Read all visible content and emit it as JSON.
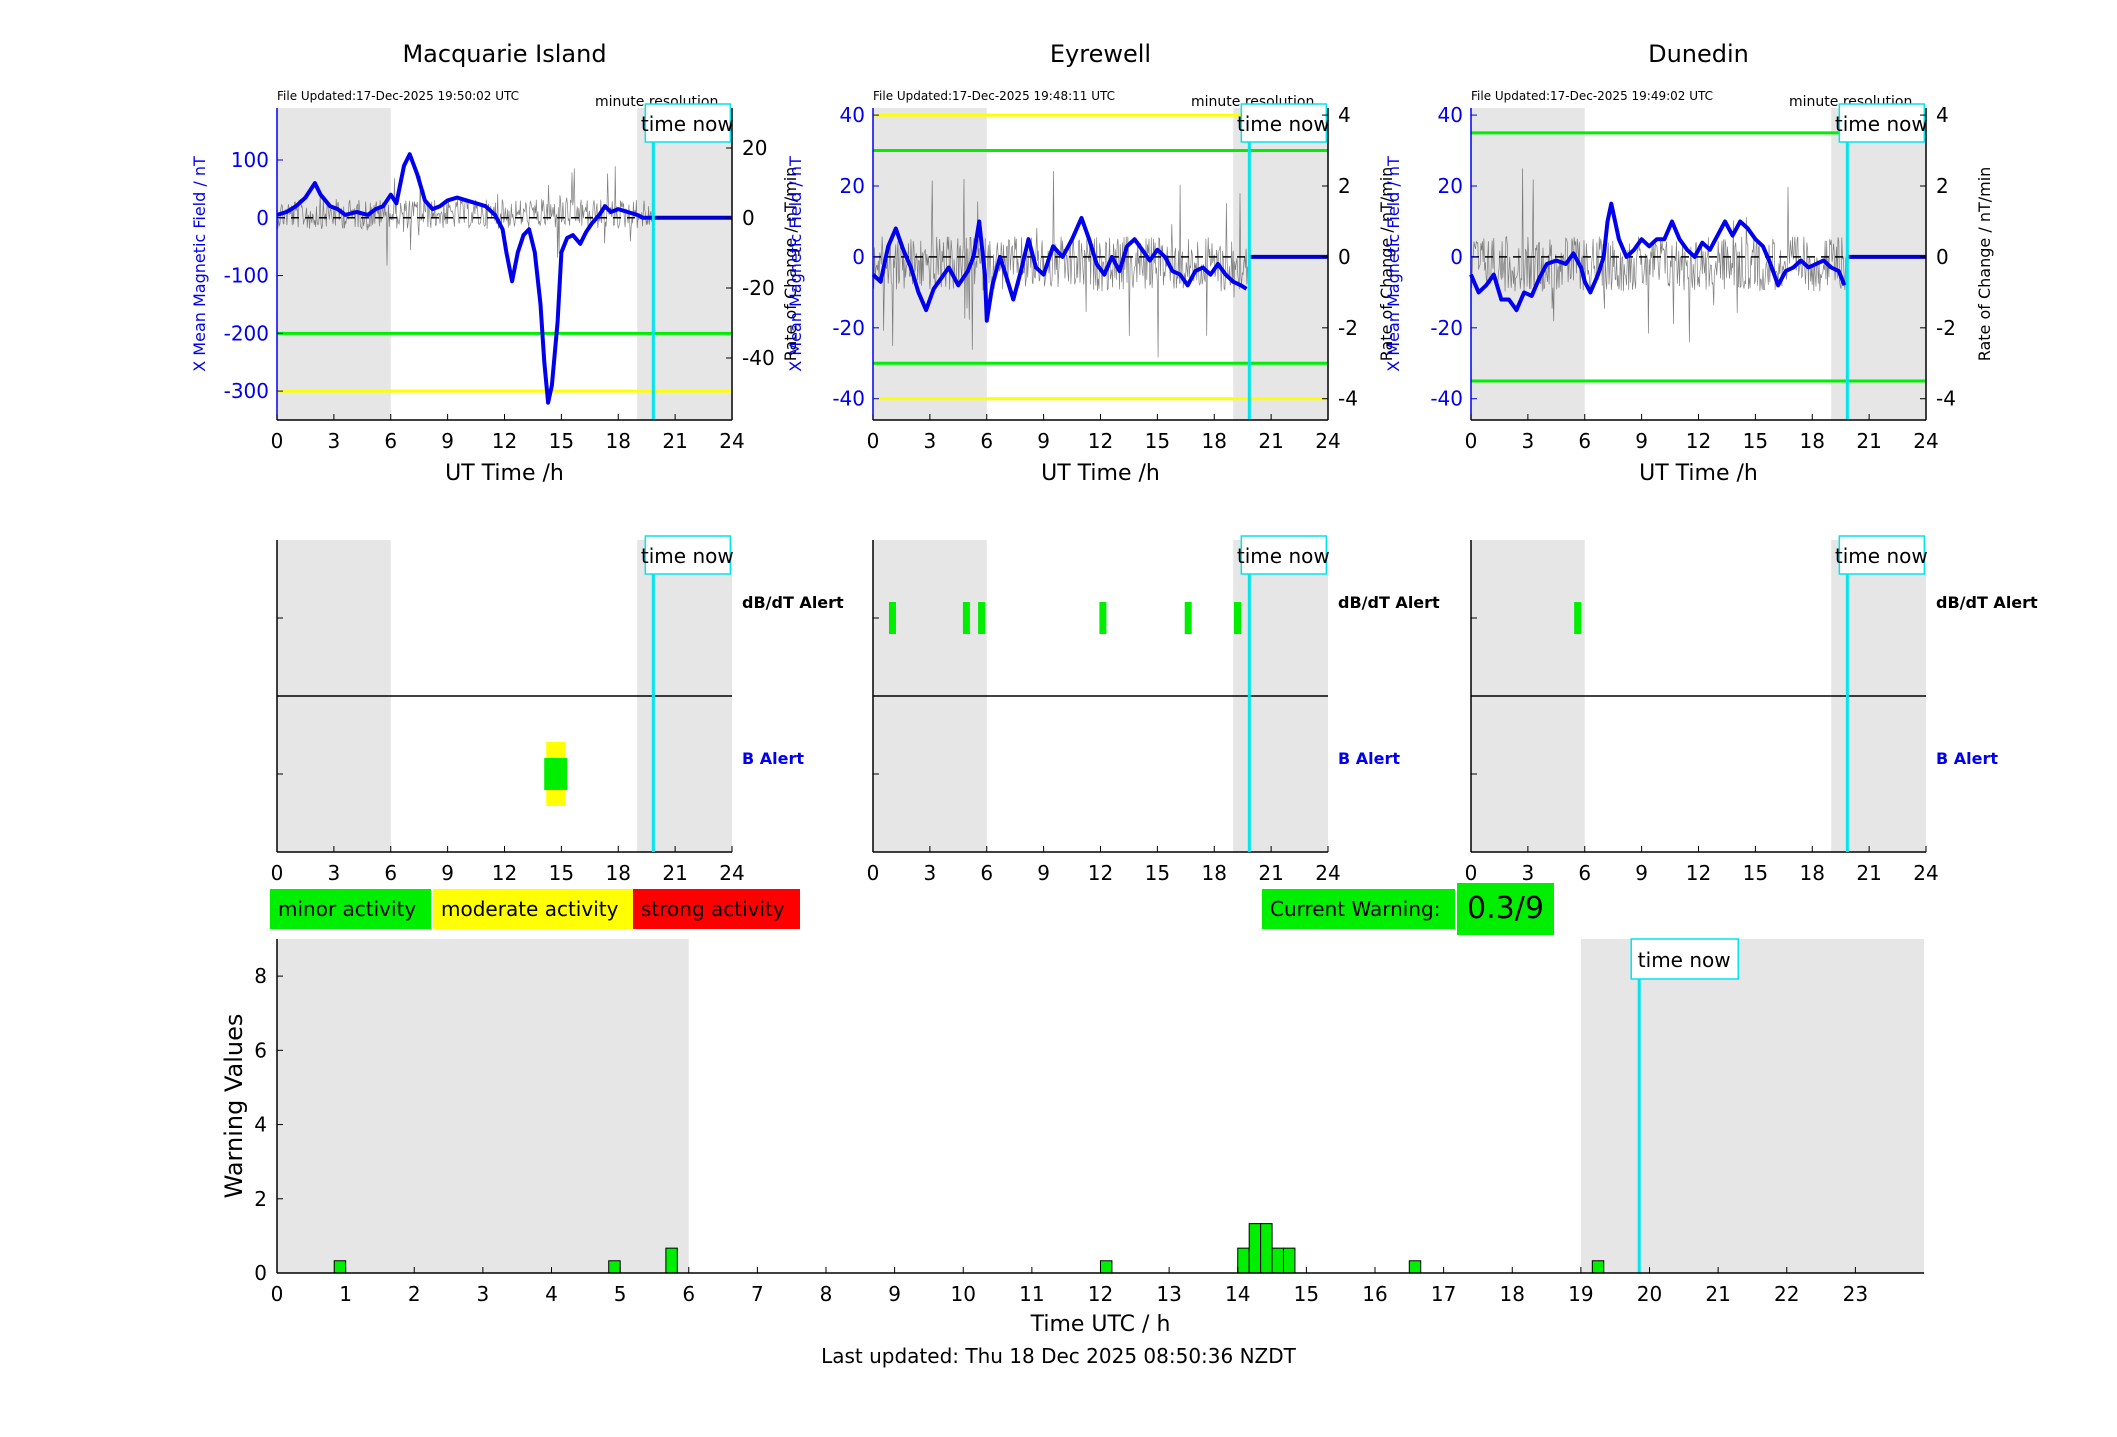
{
  "stations": [
    {
      "name": "Macquarie Island",
      "file_updated": "File Updated:17-Dec-2025 19:50:02 UTC",
      "resolution": "minute resolution",
      "ylabel_left": "X Mean Magnetic Field / nT",
      "ylabel_right": "Rate of Change / nT/min",
      "yticks_left": [
        -300,
        -200,
        -100,
        0,
        100
      ],
      "yticks_right": [
        -40,
        -20,
        0,
        20
      ],
      "ylim_left": [
        -350,
        190
      ],
      "green_level": -200,
      "yellow_level": -300,
      "dbdt_alert_hours": [],
      "b_alert": {
        "start": 14.2,
        "end": 15.2,
        "yellow_start": 14.2,
        "yellow_end": 15.2
      }
    },
    {
      "name": "Eyrewell",
      "file_updated": "File Updated:17-Dec-2025 19:48:11 UTC",
      "resolution": "minute resolution",
      "ylabel_left": "X Mean Magnetic Field / nT",
      "ylabel_right": "Rate of Change / nT/min",
      "yticks_left": [
        -40,
        -20,
        0,
        20,
        40
      ],
      "yticks_right": [
        -4,
        -2,
        0,
        2,
        4
      ],
      "ylim_left": [
        -46,
        42
      ],
      "green_levels": [
        30,
        -30
      ],
      "yellow_levels": [
        40,
        -40
      ],
      "dbdt_alert_hours": [
        1.0,
        4.9,
        5.7,
        12.1,
        16.6,
        19.2
      ],
      "b_alert": null
    },
    {
      "name": "Dunedin",
      "file_updated": "File Updated:17-Dec-2025 19:49:02 UTC",
      "resolution": "minute resolution",
      "ylabel_left": "X Mean Magnetic Field / nT",
      "ylabel_right": "Rate of Change / nT/min",
      "yticks_left": [
        -40,
        -20,
        0,
        20,
        40
      ],
      "yticks_right": [
        -4,
        -2,
        0,
        2,
        4
      ],
      "ylim_left": [
        -46,
        42
      ],
      "green_levels": [
        35,
        -35
      ],
      "dbdt_alert_hours": [
        5.6
      ],
      "b_alert": null
    }
  ],
  "common": {
    "xlabel": "UT Time /h",
    "xticks": [
      0,
      3,
      6,
      9,
      12,
      15,
      18,
      21,
      24
    ],
    "time_now_label": "time now",
    "time_now_hour": 19.85,
    "night_shade": [
      [
        0,
        6
      ],
      [
        19,
        24
      ]
    ],
    "dbdt_label": "dB/dT Alert",
    "b_label": "B Alert"
  },
  "legend": {
    "minor": "minor activity",
    "moderate": "moderate activity",
    "strong": "strong activity",
    "current_warning_label": "Current Warning:",
    "current_warning_value": "0.3/9"
  },
  "chart_data": {
    "type": "bar",
    "xlabel": "Time UTC / h",
    "ylabel": "Warning Values",
    "xlim": [
      0,
      24
    ],
    "ylim": [
      0,
      9
    ],
    "xticks": [
      0,
      1,
      2,
      3,
      4,
      5,
      6,
      7,
      8,
      9,
      10,
      11,
      12,
      13,
      14,
      15,
      16,
      17,
      18,
      19,
      20,
      21,
      22,
      23
    ],
    "yticks": [
      0,
      2,
      4,
      6,
      8
    ],
    "night_shade": [
      [
        0,
        6
      ],
      [
        19,
        24
      ]
    ],
    "time_now_hour": 19.85,
    "x": [
      0.917,
      4.917,
      5.75,
      12.083,
      14.083,
      14.25,
      14.417,
      14.583,
      14.75,
      16.583,
      19.25
    ],
    "values": [
      0.33,
      0.33,
      0.67,
      0.33,
      0.67,
      1.33,
      1.33,
      0.67,
      0.67,
      0.33,
      0.33
    ],
    "bar_width_hours": 0.1667
  },
  "footer": "Last updated: Thu 18 Dec 2025 08:50:36 NZDT"
}
